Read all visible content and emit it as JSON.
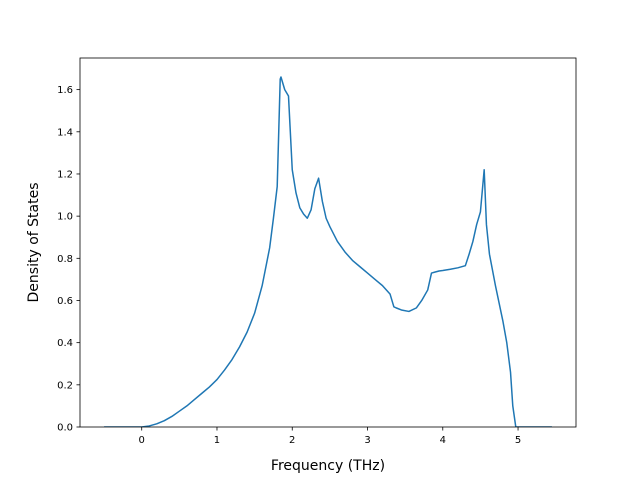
{
  "chart_data": {
    "type": "line",
    "title": "",
    "xlabel": "Frequency (THz)",
    "ylabel": "Density of States",
    "xlim": [
      -0.82,
      5.77
    ],
    "ylim": [
      0.0,
      1.75
    ],
    "xticks": [
      0,
      1,
      2,
      3,
      4,
      5
    ],
    "xtick_labels": [
      "0",
      "1",
      "2",
      "3",
      "4",
      "5"
    ],
    "yticks": [
      0.0,
      0.2,
      0.4,
      0.6,
      0.8,
      1.0,
      1.2,
      1.4,
      1.6
    ],
    "ytick_labels": [
      "0.0",
      "0.2",
      "0.4",
      "0.6",
      "0.8",
      "1.0",
      "1.2",
      "1.4",
      "1.6"
    ],
    "grid": false,
    "legend": "none",
    "colors": {
      "line": "#1f77b4",
      "axes": "#000000",
      "background": "#ffffff"
    },
    "series": [
      {
        "x": [
          -0.5,
          -0.2,
          0.0,
          0.1,
          0.2,
          0.3,
          0.4,
          0.5,
          0.6,
          0.7,
          0.8,
          0.9,
          1.0,
          1.1,
          1.2,
          1.3,
          1.4,
          1.5,
          1.6,
          1.7,
          1.75,
          1.8,
          1.84,
          1.85,
          1.9,
          1.95,
          2.0,
          2.05,
          2.1,
          2.15,
          2.2,
          2.25,
          2.3,
          2.35,
          2.4,
          2.45,
          2.5,
          2.6,
          2.7,
          2.8,
          2.9,
          3.0,
          3.1,
          3.2,
          3.3,
          3.35,
          3.38,
          3.45,
          3.55,
          3.65,
          3.72,
          3.8,
          3.85,
          3.9,
          3.95,
          4.0,
          4.1,
          4.2,
          4.3,
          4.35,
          4.4,
          4.45,
          4.5,
          4.55,
          4.58,
          4.62,
          4.7,
          4.8,
          4.85,
          4.9,
          4.93,
          4.97,
          5.0,
          5.2,
          5.45
        ],
        "y": [
          0.0,
          0.0,
          0.0,
          0.005,
          0.015,
          0.03,
          0.05,
          0.075,
          0.1,
          0.13,
          0.16,
          0.19,
          0.225,
          0.27,
          0.32,
          0.38,
          0.45,
          0.54,
          0.67,
          0.85,
          0.99,
          1.14,
          1.65,
          1.66,
          1.6,
          1.57,
          1.22,
          1.11,
          1.04,
          1.01,
          0.99,
          1.03,
          1.13,
          1.18,
          1.07,
          0.99,
          0.95,
          0.88,
          0.83,
          0.79,
          0.76,
          0.73,
          0.7,
          0.67,
          0.63,
          0.57,
          0.565,
          0.555,
          0.548,
          0.565,
          0.6,
          0.65,
          0.73,
          0.735,
          0.74,
          0.742,
          0.748,
          0.755,
          0.765,
          0.82,
          0.88,
          0.96,
          1.02,
          1.22,
          0.96,
          0.82,
          0.67,
          0.5,
          0.4,
          0.26,
          0.1,
          0.0,
          0.0,
          0.0,
          0.0
        ]
      }
    ]
  }
}
